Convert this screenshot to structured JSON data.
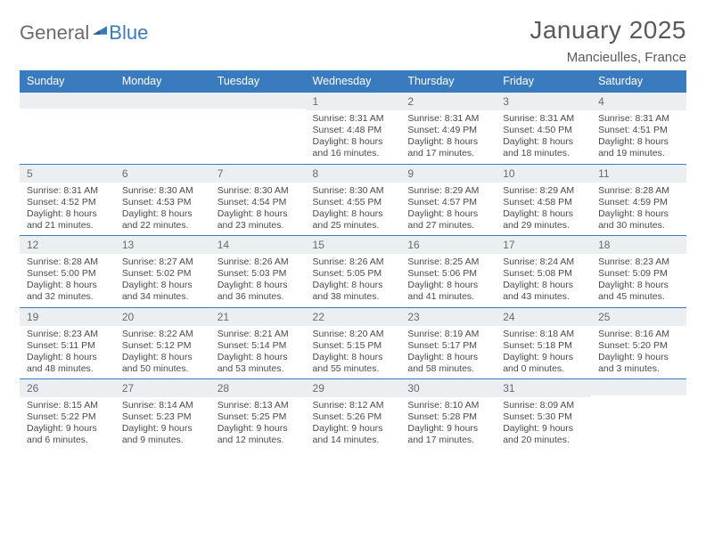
{
  "branding": {
    "logo_part1": "General",
    "logo_part2": "Blue",
    "logo_color_gray": "#6b6b6b",
    "logo_color_blue": "#3a7bbf"
  },
  "header": {
    "month_title": "January 2025",
    "location": "Mancieulles, France"
  },
  "style": {
    "header_bg": "#3a7bbf",
    "header_text": "#ffffff",
    "daynum_bg": "#eceff1",
    "daynum_text": "#666b6f",
    "body_text": "#4a4a4a",
    "rule_color": "#3a7bbf",
    "page_bg": "#ffffff",
    "title_color": "#5a5a5a"
  },
  "calendar": {
    "day_headers": [
      "Sunday",
      "Monday",
      "Tuesday",
      "Wednesday",
      "Thursday",
      "Friday",
      "Saturday"
    ],
    "weeks": [
      [
        {
          "num": "",
          "lines": []
        },
        {
          "num": "",
          "lines": []
        },
        {
          "num": "",
          "lines": []
        },
        {
          "num": "1",
          "lines": [
            "Sunrise: 8:31 AM",
            "Sunset: 4:48 PM",
            "Daylight: 8 hours and 16 minutes."
          ]
        },
        {
          "num": "2",
          "lines": [
            "Sunrise: 8:31 AM",
            "Sunset: 4:49 PM",
            "Daylight: 8 hours and 17 minutes."
          ]
        },
        {
          "num": "3",
          "lines": [
            "Sunrise: 8:31 AM",
            "Sunset: 4:50 PM",
            "Daylight: 8 hours and 18 minutes."
          ]
        },
        {
          "num": "4",
          "lines": [
            "Sunrise: 8:31 AM",
            "Sunset: 4:51 PM",
            "Daylight: 8 hours and 19 minutes."
          ]
        }
      ],
      [
        {
          "num": "5",
          "lines": [
            "Sunrise: 8:31 AM",
            "Sunset: 4:52 PM",
            "Daylight: 8 hours and 21 minutes."
          ]
        },
        {
          "num": "6",
          "lines": [
            "Sunrise: 8:30 AM",
            "Sunset: 4:53 PM",
            "Daylight: 8 hours and 22 minutes."
          ]
        },
        {
          "num": "7",
          "lines": [
            "Sunrise: 8:30 AM",
            "Sunset: 4:54 PM",
            "Daylight: 8 hours and 23 minutes."
          ]
        },
        {
          "num": "8",
          "lines": [
            "Sunrise: 8:30 AM",
            "Sunset: 4:55 PM",
            "Daylight: 8 hours and 25 minutes."
          ]
        },
        {
          "num": "9",
          "lines": [
            "Sunrise: 8:29 AM",
            "Sunset: 4:57 PM",
            "Daylight: 8 hours and 27 minutes."
          ]
        },
        {
          "num": "10",
          "lines": [
            "Sunrise: 8:29 AM",
            "Sunset: 4:58 PM",
            "Daylight: 8 hours and 29 minutes."
          ]
        },
        {
          "num": "11",
          "lines": [
            "Sunrise: 8:28 AM",
            "Sunset: 4:59 PM",
            "Daylight: 8 hours and 30 minutes."
          ]
        }
      ],
      [
        {
          "num": "12",
          "lines": [
            "Sunrise: 8:28 AM",
            "Sunset: 5:00 PM",
            "Daylight: 8 hours and 32 minutes."
          ]
        },
        {
          "num": "13",
          "lines": [
            "Sunrise: 8:27 AM",
            "Sunset: 5:02 PM",
            "Daylight: 8 hours and 34 minutes."
          ]
        },
        {
          "num": "14",
          "lines": [
            "Sunrise: 8:26 AM",
            "Sunset: 5:03 PM",
            "Daylight: 8 hours and 36 minutes."
          ]
        },
        {
          "num": "15",
          "lines": [
            "Sunrise: 8:26 AM",
            "Sunset: 5:05 PM",
            "Daylight: 8 hours and 38 minutes."
          ]
        },
        {
          "num": "16",
          "lines": [
            "Sunrise: 8:25 AM",
            "Sunset: 5:06 PM",
            "Daylight: 8 hours and 41 minutes."
          ]
        },
        {
          "num": "17",
          "lines": [
            "Sunrise: 8:24 AM",
            "Sunset: 5:08 PM",
            "Daylight: 8 hours and 43 minutes."
          ]
        },
        {
          "num": "18",
          "lines": [
            "Sunrise: 8:23 AM",
            "Sunset: 5:09 PM",
            "Daylight: 8 hours and 45 minutes."
          ]
        }
      ],
      [
        {
          "num": "19",
          "lines": [
            "Sunrise: 8:23 AM",
            "Sunset: 5:11 PM",
            "Daylight: 8 hours and 48 minutes."
          ]
        },
        {
          "num": "20",
          "lines": [
            "Sunrise: 8:22 AM",
            "Sunset: 5:12 PM",
            "Daylight: 8 hours and 50 minutes."
          ]
        },
        {
          "num": "21",
          "lines": [
            "Sunrise: 8:21 AM",
            "Sunset: 5:14 PM",
            "Daylight: 8 hours and 53 minutes."
          ]
        },
        {
          "num": "22",
          "lines": [
            "Sunrise: 8:20 AM",
            "Sunset: 5:15 PM",
            "Daylight: 8 hours and 55 minutes."
          ]
        },
        {
          "num": "23",
          "lines": [
            "Sunrise: 8:19 AM",
            "Sunset: 5:17 PM",
            "Daylight: 8 hours and 58 minutes."
          ]
        },
        {
          "num": "24",
          "lines": [
            "Sunrise: 8:18 AM",
            "Sunset: 5:18 PM",
            "Daylight: 9 hours and 0 minutes."
          ]
        },
        {
          "num": "25",
          "lines": [
            "Sunrise: 8:16 AM",
            "Sunset: 5:20 PM",
            "Daylight: 9 hours and 3 minutes."
          ]
        }
      ],
      [
        {
          "num": "26",
          "lines": [
            "Sunrise: 8:15 AM",
            "Sunset: 5:22 PM",
            "Daylight: 9 hours and 6 minutes."
          ]
        },
        {
          "num": "27",
          "lines": [
            "Sunrise: 8:14 AM",
            "Sunset: 5:23 PM",
            "Daylight: 9 hours and 9 minutes."
          ]
        },
        {
          "num": "28",
          "lines": [
            "Sunrise: 8:13 AM",
            "Sunset: 5:25 PM",
            "Daylight: 9 hours and 12 minutes."
          ]
        },
        {
          "num": "29",
          "lines": [
            "Sunrise: 8:12 AM",
            "Sunset: 5:26 PM",
            "Daylight: 9 hours and 14 minutes."
          ]
        },
        {
          "num": "30",
          "lines": [
            "Sunrise: 8:10 AM",
            "Sunset: 5:28 PM",
            "Daylight: 9 hours and 17 minutes."
          ]
        },
        {
          "num": "31",
          "lines": [
            "Sunrise: 8:09 AM",
            "Sunset: 5:30 PM",
            "Daylight: 9 hours and 20 minutes."
          ]
        },
        {
          "num": "",
          "lines": []
        }
      ]
    ]
  }
}
